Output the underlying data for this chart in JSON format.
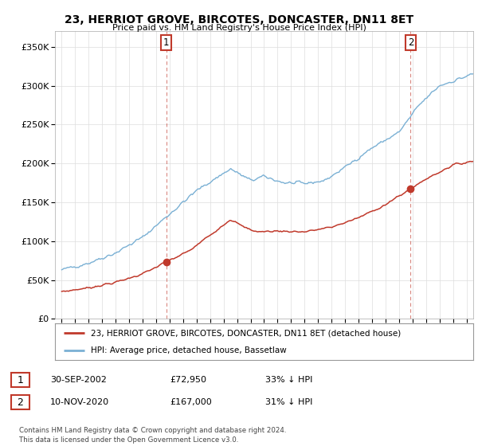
{
  "title": "23, HERRIOT GROVE, BIRCOTES, DONCASTER, DN11 8ET",
  "subtitle": "Price paid vs. HM Land Registry's House Price Index (HPI)",
  "ylim": [
    0,
    370000
  ],
  "yticks": [
    0,
    50000,
    100000,
    150000,
    200000,
    250000,
    300000,
    350000
  ],
  "ytick_labels": [
    "£0",
    "£50K",
    "£100K",
    "£150K",
    "£200K",
    "£250K",
    "£300K",
    "£350K"
  ],
  "xlim_start": 1994.5,
  "xlim_end": 2025.5,
  "sale1_x": 2002.75,
  "sale1_y": 72950,
  "sale1_label": "1",
  "sale2_x": 2020.86,
  "sale2_y": 167000,
  "sale2_label": "2",
  "hpi_color": "#7ab0d4",
  "price_color": "#c0392b",
  "vline_color": "#c0392b",
  "legend_price_label": "23, HERRIOT GROVE, BIRCOTES, DONCASTER, DN11 8ET (detached house)",
  "legend_hpi_label": "HPI: Average price, detached house, Bassetlaw",
  "table_row1": [
    "1",
    "30-SEP-2002",
    "£72,950",
    "33% ↓ HPI"
  ],
  "table_row2": [
    "2",
    "10-NOV-2020",
    "£167,000",
    "31% ↓ HPI"
  ],
  "footnote": "Contains HM Land Registry data © Crown copyright and database right 2024.\nThis data is licensed under the Open Government Licence v3.0.",
  "background_color": "#ffffff",
  "grid_color": "#dddddd"
}
